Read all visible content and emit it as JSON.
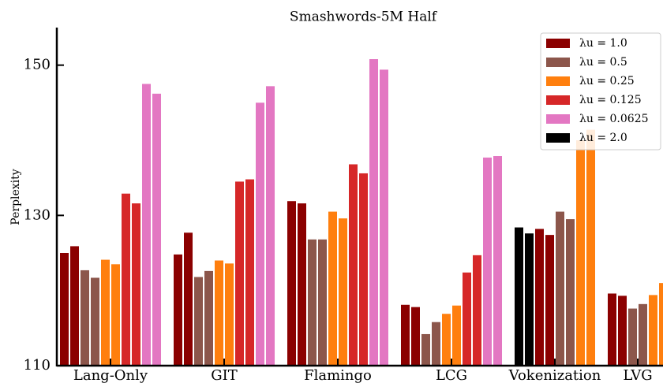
{
  "chart_data": {
    "type": "bar",
    "title": "Smashwords-5M Half",
    "y_label": "Perplexity",
    "categories": [
      "Lang-Only",
      "GIT",
      "Flamingo",
      "LCG",
      "Vokenization",
      "LVG"
    ],
    "series": [
      {
        "name": "λu = 2.0",
        "color": "#000000",
        "values": [
          null,
          null,
          null,
          null,
          [
            128.4,
            127.6
          ],
          null
        ]
      },
      {
        "name": "λu = 1.0",
        "color": "#8b0000",
        "values": [
          [
            125.0,
            125.9
          ],
          [
            124.8,
            127.7
          ],
          [
            131.9,
            131.6
          ],
          [
            118.1,
            117.8
          ],
          [
            128.2,
            127.4
          ],
          [
            119.6,
            119.3
          ]
        ]
      },
      {
        "name": "λu = 0.5",
        "color": "#8c564b",
        "values": [
          [
            122.7,
            121.7
          ],
          [
            121.8,
            122.6
          ],
          [
            126.8,
            126.8
          ],
          [
            114.2,
            115.8
          ],
          [
            130.5,
            129.5
          ],
          [
            117.6,
            118.2
          ]
        ]
      },
      {
        "name": "λu = 0.25",
        "color": "#ff7f0e",
        "values": [
          [
            124.1,
            123.5
          ],
          [
            124.0,
            123.6
          ],
          [
            130.5,
            129.6
          ],
          [
            116.9,
            118.0
          ],
          [
            140.0,
            141.4
          ],
          [
            119.4,
            121.0
          ]
        ]
      },
      {
        "name": "λu = 0.125",
        "color": "#d62728",
        "values": [
          [
            132.9,
            131.6
          ],
          [
            134.5,
            134.8
          ],
          [
            136.8,
            135.6
          ],
          [
            122.4,
            124.7
          ],
          null,
          null
        ]
      },
      {
        "name": "λu = 0.0625",
        "color": "#e377c2",
        "values": [
          [
            147.5,
            146.2
          ],
          [
            145.0,
            147.2
          ],
          [
            150.8,
            149.4
          ],
          [
            137.7,
            137.9
          ],
          null,
          null
        ]
      }
    ],
    "legend_order": [
      1,
      2,
      3,
      4,
      5,
      0
    ],
    "legend": "upper right",
    "ylim": [
      110,
      155
    ],
    "yticks": [
      110,
      130,
      150
    ]
  }
}
